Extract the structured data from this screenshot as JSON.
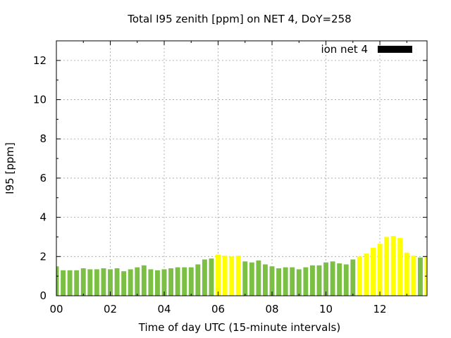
{
  "chart_data": {
    "type": "bar",
    "title": "Total I95 zenith [ppm] on NET 4, DoY=258",
    "xlabel": "Time of day UTC (15-minute intervals)",
    "ylabel": "I95 [ppm]",
    "ylim": [
      0,
      13
    ],
    "xlim": [
      0,
      13.75
    ],
    "x_ticks": [
      "00",
      "02",
      "04",
      "06",
      "08",
      "10",
      "12"
    ],
    "y_ticks": [
      "0",
      "2",
      "4",
      "6",
      "8",
      "10",
      "12"
    ],
    "grid": true,
    "legend": {
      "position": "top-right",
      "label": "ion net 4",
      "color": "#000000"
    },
    "colors": {
      "normal": "#7bbf45",
      "elevated": "#ffff00"
    },
    "interval_hours": 0.25,
    "series": [
      {
        "values": [
          1.5,
          1.3,
          1.3,
          1.3,
          1.4,
          1.35,
          1.35,
          1.4,
          1.35,
          1.4,
          1.25,
          1.35,
          1.45,
          1.55,
          1.35,
          1.3,
          1.35,
          1.4,
          1.45,
          1.45,
          1.45,
          1.6,
          1.85,
          1.9,
          2.1,
          2.05,
          2.0,
          2.05,
          1.75,
          1.7,
          1.8,
          1.6,
          1.5,
          1.4,
          1.45,
          1.45,
          1.35,
          1.45,
          1.55,
          1.55,
          1.7,
          1.75,
          1.65,
          1.6,
          1.85,
          2.0,
          2.15,
          2.45,
          2.65,
          3.0,
          3.05,
          2.95,
          2.2,
          2.05,
          1.95,
          2.05
        ],
        "status": [
          "normal",
          "normal",
          "normal",
          "normal",
          "normal",
          "normal",
          "normal",
          "normal",
          "normal",
          "normal",
          "normal",
          "normal",
          "normal",
          "normal",
          "normal",
          "normal",
          "normal",
          "normal",
          "normal",
          "normal",
          "normal",
          "normal",
          "normal",
          "normal",
          "elevated",
          "elevated",
          "elevated",
          "elevated",
          "normal",
          "normal",
          "normal",
          "normal",
          "normal",
          "normal",
          "normal",
          "normal",
          "normal",
          "normal",
          "normal",
          "normal",
          "normal",
          "normal",
          "normal",
          "normal",
          "normal",
          "elevated",
          "elevated",
          "elevated",
          "elevated",
          "elevated",
          "elevated",
          "elevated",
          "elevated",
          "elevated",
          "normal",
          "elevated"
        ]
      }
    ]
  }
}
